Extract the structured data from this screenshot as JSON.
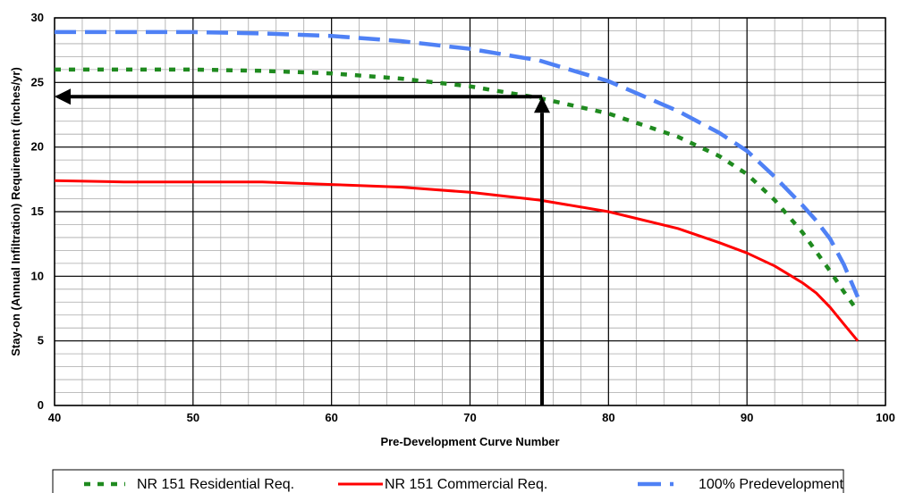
{
  "chart_data": {
    "type": "line",
    "title": "",
    "xlabel": "Pre-Development Curve Number",
    "ylabel": "Stay-on (Annual Infiltration) Requirement (inches/yr)",
    "xlim": [
      40,
      100
    ],
    "ylim": [
      0,
      30
    ],
    "x_major_ticks": [
      40,
      50,
      60,
      70,
      80,
      90,
      100
    ],
    "y_major_ticks": [
      0,
      5,
      10,
      15,
      20,
      25,
      30
    ],
    "x_minor_step": 2,
    "y_minor_step": 1,
    "grid": true,
    "legend_position": "bottom",
    "series": [
      {
        "name": "NR 151 Residential Req.",
        "color": "#1f8a1f",
        "style": "dotted",
        "x": [
          40,
          45,
          50,
          55,
          60,
          65,
          70,
          75,
          80,
          85,
          88,
          90,
          92,
          94,
          95,
          96,
          97,
          98
        ],
        "y": [
          26.0,
          26.0,
          26.0,
          25.9,
          25.7,
          25.3,
          24.7,
          23.8,
          22.6,
          20.8,
          19.3,
          17.9,
          15.9,
          13.4,
          11.9,
          10.4,
          8.8,
          7.3
        ]
      },
      {
        "name": "NR 151 Commercial Req.",
        "color": "#ff0000",
        "style": "solid",
        "x": [
          40,
          45,
          50,
          55,
          60,
          65,
          70,
          75,
          80,
          85,
          88,
          90,
          92,
          94,
          95,
          96,
          97,
          98
        ],
        "y": [
          17.4,
          17.3,
          17.3,
          17.3,
          17.1,
          16.9,
          16.5,
          15.9,
          15.0,
          13.7,
          12.6,
          11.8,
          10.8,
          9.5,
          8.7,
          7.6,
          6.3,
          5.0
        ]
      },
      {
        "name": "100% Predevelopment",
        "color": "#4f81f5",
        "style": "dashed",
        "x": [
          40,
          45,
          50,
          55,
          60,
          65,
          70,
          75,
          80,
          85,
          88,
          90,
          92,
          94,
          95,
          96,
          97,
          98
        ],
        "y": [
          28.9,
          28.9,
          28.9,
          28.8,
          28.6,
          28.2,
          27.6,
          26.7,
          25.1,
          22.8,
          21.1,
          19.7,
          17.7,
          15.5,
          14.3,
          12.9,
          10.9,
          8.4
        ]
      }
    ],
    "annotations": [
      {
        "type": "arrow",
        "from": [
          75.2,
          0
        ],
        "to": [
          75.2,
          23.9
        ]
      },
      {
        "type": "arrow",
        "from": [
          75.2,
          23.9
        ],
        "to": [
          40,
          23.9
        ]
      }
    ]
  }
}
